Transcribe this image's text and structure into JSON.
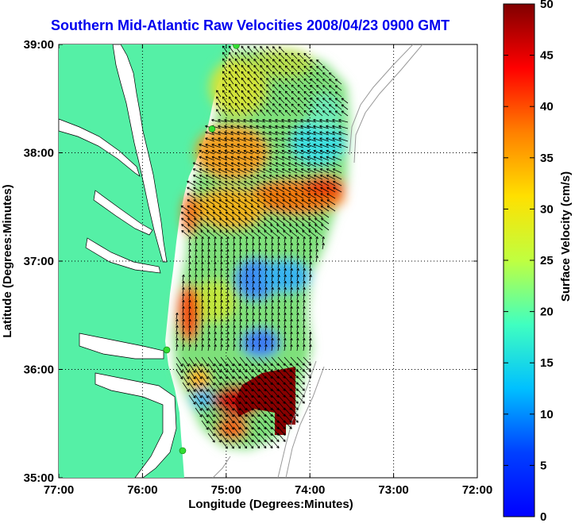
{
  "title": "Southern Mid-Atlantic Raw Velocities 2008/04/23 0900 GMT",
  "xlabel": "Longitude (Degrees:Minutes)",
  "ylabel": "Latitude (Degrees:Minutes)",
  "colorbar_label": "Surface Velocity (cm/s)",
  "colors": {
    "land": "#55f0a6",
    "water": "#ffffff",
    "site_marker": "#33dd33",
    "title": "#0000ee"
  },
  "chart_data": [
    {
      "type": "heatmap",
      "title": "Southern Mid-Atlantic Raw Velocities 2008/04/23 0900 GMT",
      "xlabel": "Longitude (Degrees:Minutes)",
      "ylabel": "Latitude (Degrees:Minutes)",
      "xlim": [
        -77,
        -72
      ],
      "ylim": [
        35,
        39
      ],
      "grid": true,
      "x_ticks": [
        {
          "value": -77,
          "label": "77:00"
        },
        {
          "value": -76,
          "label": "76:00"
        },
        {
          "value": -75,
          "label": "75:00"
        },
        {
          "value": -74,
          "label": "74:00"
        },
        {
          "value": -73,
          "label": "73:00"
        },
        {
          "value": -72,
          "label": "72:00"
        }
      ],
      "y_ticks": [
        {
          "value": 35,
          "label": "35:00"
        },
        {
          "value": 36,
          "label": "36:00"
        },
        {
          "value": 37,
          "label": "37:00"
        },
        {
          "value": 38,
          "label": "38:00"
        },
        {
          "value": 39,
          "label": "39:00"
        }
      ],
      "hf_radar_sites": [
        {
          "lon": -74.88,
          "lat": 38.99
        },
        {
          "lon": -75.17,
          "lat": 38.22
        },
        {
          "lon": -75.71,
          "lat": 36.18
        },
        {
          "lon": -75.52,
          "lat": 35.25
        }
      ],
      "velocity_zones": [
        {
          "region": "northern shelf",
          "value": 22
        },
        {
          "region": "mouth of Delaware Bay",
          "value": 33
        },
        {
          "region": "band near 37.5N",
          "value": 38
        },
        {
          "region": "northeast offshore",
          "value": 11
        },
        {
          "region": "central basin near 36.6N 74.7W",
          "value": 6
        },
        {
          "region": "southern basin near 36.2N 74.6W",
          "value": 6
        },
        {
          "region": "near Cape Hatteras 35.7N 74.4W",
          "value": 50
        },
        {
          "region": "coast near 36.5N",
          "value": 40
        }
      ]
    },
    {
      "type": "heatmap",
      "title": "",
      "ylabel": "Surface Velocity (cm/s)",
      "ylim": [
        0,
        50
      ],
      "colormap": "jet",
      "ticks": [
        0,
        5,
        10,
        15,
        20,
        25,
        30,
        35,
        40,
        45,
        50
      ]
    }
  ]
}
